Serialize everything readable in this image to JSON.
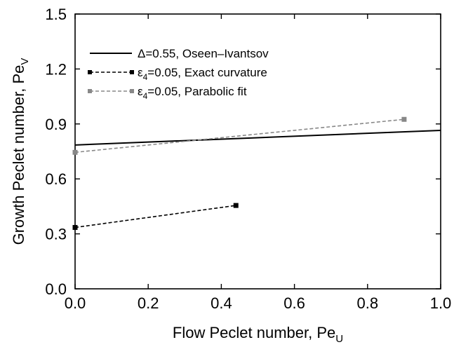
{
  "chart_data": {
    "type": "line",
    "xlabel": "Flow Peclet number, Pe",
    "xlabel_sub": "U",
    "ylabel": "Growth Peclet number, Pe",
    "ylabel_sub": "V",
    "xlim": [
      0.0,
      1.0
    ],
    "ylim": [
      0.0,
      1.5
    ],
    "x_ticks": [
      "0.0",
      "0.2",
      "0.4",
      "0.6",
      "0.8",
      "1.0"
    ],
    "y_ticks": [
      "0.0",
      "0.3",
      "0.6",
      "0.9",
      "1.2",
      "1.5"
    ],
    "grid": false,
    "legend_position": "top-left",
    "series": [
      {
        "name": "Δ=0.55, Oseen–Ivantsov",
        "legend_prefix": "Δ",
        "legend_sub": "",
        "legend_suffix": "=0.55, Oseen–Ivantsov",
        "color": "#000000",
        "dash": "solid",
        "marker": "none",
        "x": [
          0.0,
          1.0
        ],
        "y": [
          0.785,
          0.865
        ]
      },
      {
        "name": "ε4=0.05, Exact curvature",
        "legend_prefix": "ε",
        "legend_sub": "4",
        "legend_suffix": "=0.05, Exact curvature",
        "color": "#000000",
        "dash": "dashed",
        "marker": "square",
        "x": [
          0.0,
          0.44
        ],
        "y": [
          0.335,
          0.455
        ]
      },
      {
        "name": "ε4=0.05, Parabolic fit",
        "legend_prefix": "ε",
        "legend_sub": "4",
        "legend_suffix": "=0.05, Parabolic fit",
        "color": "#888888",
        "dash": "dashed",
        "marker": "square",
        "x": [
          0.0,
          0.9
        ],
        "y": [
          0.745,
          0.925
        ]
      }
    ]
  }
}
